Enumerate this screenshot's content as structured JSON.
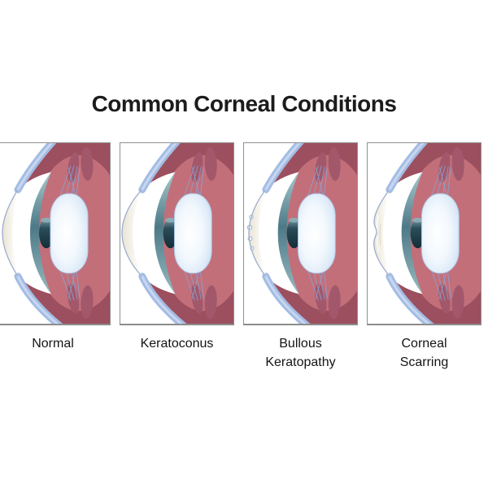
{
  "title": "Common Corneal Conditions",
  "panels": [
    {
      "variant": "normal",
      "label_lines": [
        "Normal",
        ""
      ]
    },
    {
      "variant": "keratoconus",
      "label_lines": [
        "Keratoconus",
        ""
      ]
    },
    {
      "variant": "bullous",
      "label_lines": [
        "Bullous",
        "Keratopathy"
      ]
    },
    {
      "variant": "scarring",
      "label_lines": [
        "Corneal",
        "Scarring"
      ]
    }
  ],
  "colors": {
    "background": "#ffffff",
    "panel_border": "#909090",
    "title_text": "#1c1c1c",
    "label_text": "#141414",
    "sclera_blue": "#a2bce4",
    "sclera_blue_light": "#c8d6ef",
    "choroid_dark_red": "#9c4f5e",
    "interior_red": "#c26f7a",
    "muscle_red": "#a2586a",
    "iris_teal_top": "#a9c9ce",
    "iris_teal_dark": "#4d7a87",
    "iris_teal_bottom": "#96bac0",
    "cornea_cream": "#e9e4d4",
    "cornea_cream_light": "#f7f5ee",
    "cornea_outline": "#9cadd0",
    "anterior_white": "#ffffff",
    "lens_edge_blue": "#c6dbf1",
    "lens_core": "#ffffff",
    "lens_outline": "#b3cbe8",
    "pupil_dark": "#122e38",
    "pupil_mid": "#2b4d59",
    "pupil_light": "#7fa6b0",
    "zonule_blue": "#8aa6da",
    "blister_fill": "#f2f7fc",
    "blister_outline": "#93a8cc",
    "scar_streak": "#fbfaf5"
  }
}
